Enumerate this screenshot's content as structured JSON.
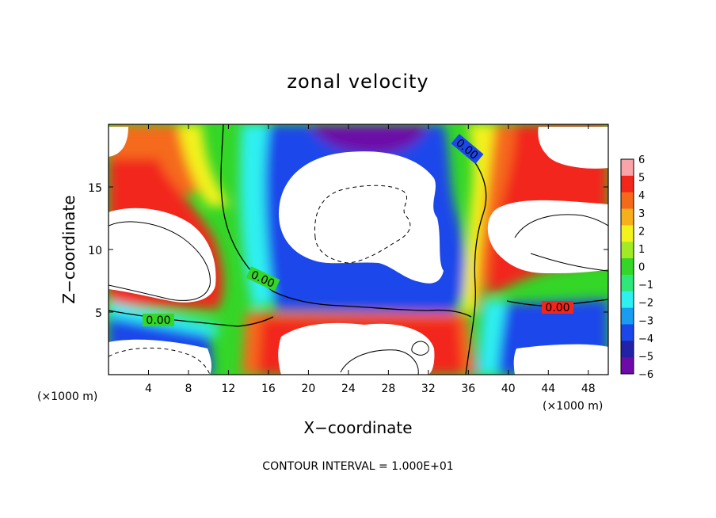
{
  "chart_data": {
    "type": "heatmap",
    "title": "zonal velocity",
    "xlabel": "X−coordinate",
    "ylabel": "Z−coordinate",
    "x_unit": "(×1000 m)",
    "y_unit": "(×1000 m)",
    "xlim": [
      0,
      50
    ],
    "ylim": [
      0,
      20
    ],
    "x_ticks": [
      4,
      8,
      12,
      16,
      20,
      24,
      28,
      32,
      36,
      40,
      44,
      48
    ],
    "x_tick_labels": [
      "4",
      "8",
      "12",
      "16",
      "20",
      "24",
      "28",
      "32",
      "36",
      "40",
      "44",
      "48"
    ],
    "y_ticks": [
      5,
      10,
      15
    ],
    "y_tick_labels": [
      "5",
      "10",
      "15"
    ],
    "colorbar": {
      "min": -6,
      "max": 6,
      "levels": [
        6,
        5,
        4,
        3,
        2,
        1,
        0,
        -1,
        -2,
        -3,
        -4,
        -5,
        -6
      ],
      "labels": [
        "6",
        "5",
        "4",
        "3",
        "2",
        "1",
        "0",
        "−1",
        "−2",
        "−3",
        "−4",
        "−5",
        "−6"
      ],
      "colors": [
        "#f8a4a8",
        "#f2261a",
        "#f56a1a",
        "#f6b01c",
        "#f3f21d",
        "#a3ea26",
        "#34d628",
        "#2ee87a",
        "#2ff0f0",
        "#1a9cf0",
        "#1a46ea",
        "#2222a6",
        "#6d0aa8"
      ],
      "saturated_high_color": "#ffffff",
      "saturated_low_color": "#ffffff"
    },
    "contour_labels": [
      "0.00",
      "0.00",
      "0.00",
      "0.00"
    ],
    "contour_interval_text": "CONTOUR INTERVAL = 1.000E+01",
    "grid": false,
    "legend": "colorbar-right"
  }
}
